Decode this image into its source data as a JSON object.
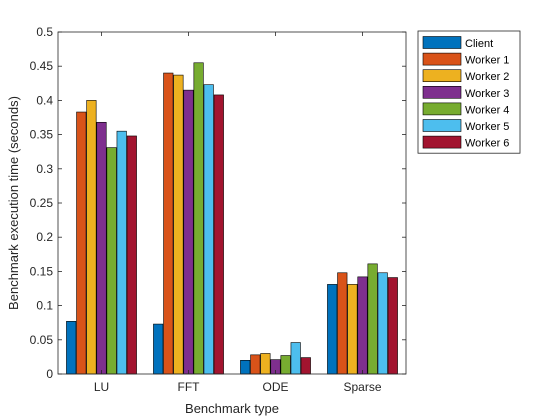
{
  "chart_data": {
    "type": "bar",
    "title": "",
    "xlabel": "Benchmark type",
    "ylabel": "Benchmark execution time (seconds)",
    "ylim": [
      0,
      0.5
    ],
    "yticks": [
      "0",
      "0.05",
      "0.1",
      "0.15",
      "0.2",
      "0.25",
      "0.3",
      "0.35",
      "0.4",
      "0.45",
      "0.5"
    ],
    "categories": [
      "LU",
      "FFT",
      "ODE",
      "Sparse"
    ],
    "grid": false,
    "legend_position": "outside-top-right",
    "series": [
      {
        "name": "Client",
        "color": "#0072BD",
        "values": [
          0.077,
          0.073,
          0.02,
          0.131
        ]
      },
      {
        "name": "Worker 1",
        "color": "#D95319",
        "values": [
          0.383,
          0.44,
          0.028,
          0.148
        ]
      },
      {
        "name": "Worker 2",
        "color": "#EDB120",
        "values": [
          0.4,
          0.437,
          0.03,
          0.131
        ]
      },
      {
        "name": "Worker 3",
        "color": "#7E2F8E",
        "values": [
          0.368,
          0.415,
          0.021,
          0.142
        ]
      },
      {
        "name": "Worker 4",
        "color": "#77AC30",
        "values": [
          0.331,
          0.455,
          0.027,
          0.161
        ]
      },
      {
        "name": "Worker 5",
        "color": "#4DBEEE",
        "values": [
          0.355,
          0.423,
          0.046,
          0.148
        ]
      },
      {
        "name": "Worker 6",
        "color": "#A2142F",
        "values": [
          0.348,
          0.408,
          0.024,
          0.141
        ]
      }
    ]
  }
}
